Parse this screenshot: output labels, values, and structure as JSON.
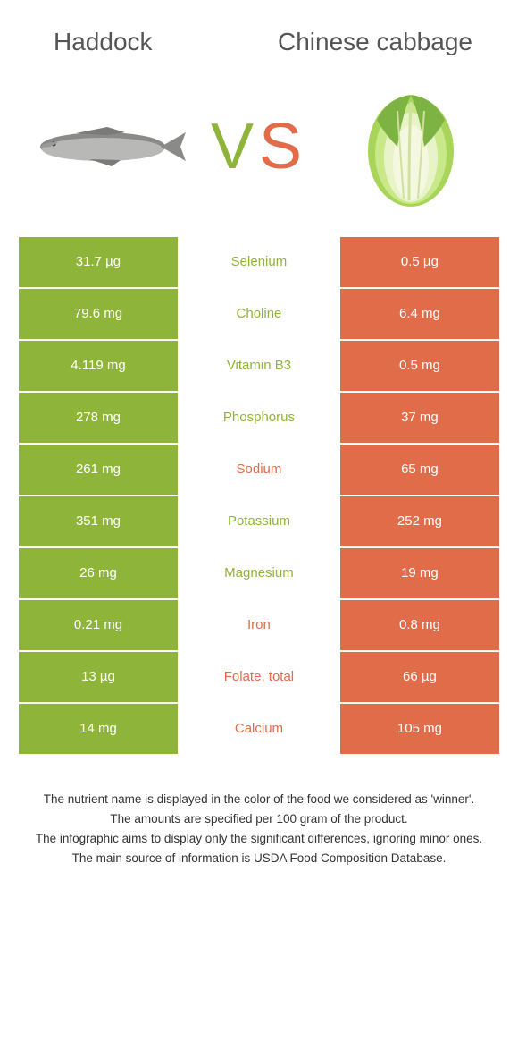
{
  "colors": {
    "green": "#8fb43a",
    "orange": "#e06c4a",
    "white": "#ffffff",
    "title_text": "#555555",
    "footer_text": "#333333"
  },
  "header": {
    "left_title": "Haddock",
    "right_title": "Chinese cabbage"
  },
  "vs": {
    "v": "V",
    "s": "S"
  },
  "table": {
    "rows": [
      {
        "left": "31.7 µg",
        "label": "Selenium",
        "right": "0.5 µg",
        "winner": "left"
      },
      {
        "left": "79.6 mg",
        "label": "Choline",
        "right": "6.4 mg",
        "winner": "left"
      },
      {
        "left": "4.119 mg",
        "label": "Vitamin B3",
        "right": "0.5 mg",
        "winner": "left"
      },
      {
        "left": "278 mg",
        "label": "Phosphorus",
        "right": "37 mg",
        "winner": "left"
      },
      {
        "left": "261 mg",
        "label": "Sodium",
        "right": "65 mg",
        "winner": "right"
      },
      {
        "left": "351 mg",
        "label": "Potassium",
        "right": "252 mg",
        "winner": "left"
      },
      {
        "left": "26 mg",
        "label": "Magnesium",
        "right": "19 mg",
        "winner": "left"
      },
      {
        "left": "0.21 mg",
        "label": "Iron",
        "right": "0.8 mg",
        "winner": "right"
      },
      {
        "left": "13 µg",
        "label": "Folate, total",
        "right": "66 µg",
        "winner": "right"
      },
      {
        "left": "14 mg",
        "label": "Calcium",
        "right": "105 mg",
        "winner": "right"
      }
    ],
    "left_bg": "#8fb43a",
    "right_bg": "#e06c4a",
    "label_color_left_winner": "#8fb43a",
    "label_color_right_winner": "#e06c4a"
  },
  "footer": {
    "lines": [
      "The nutrient name is displayed in the color of the food we considered as 'winner'.",
      "The amounts are specified per 100 gram of the product.",
      "The infographic aims to display only the significant differences, ignoring minor ones.",
      "The main source of information is USDA Food Composition Database."
    ]
  }
}
